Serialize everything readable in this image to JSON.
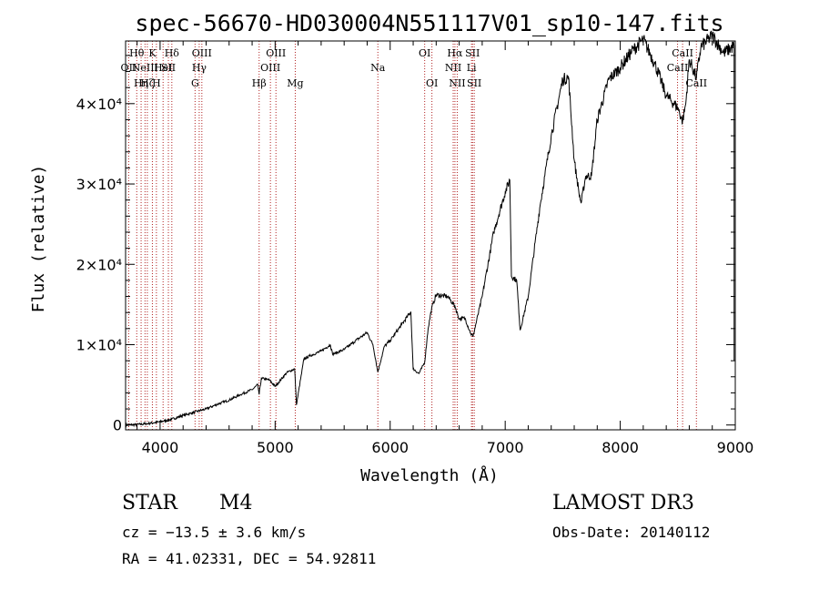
{
  "chart_data": {
    "type": "line",
    "title": "spec-56670-HD030004N551117V01_sp10-147.fits",
    "xlabel": "Wavelength (Å)",
    "ylabel": "Flux (relative)",
    "xlim": [
      3700,
      9000
    ],
    "ylim": [
      -600,
      47800
    ],
    "x_ticks": [
      4000,
      5000,
      6000,
      7000,
      8000,
      9000
    ],
    "y_ticks": [
      {
        "value": 0,
        "label": "0"
      },
      {
        "value": 10000,
        "label": "1×10⁴"
      },
      {
        "value": 20000,
        "label": "2×10⁴"
      },
      {
        "value": 30000,
        "label": "3×10⁴"
      },
      {
        "value": 40000,
        "label": "4×10⁴"
      }
    ],
    "series": [
      {
        "name": "flux",
        "x": [
          3700,
          3800,
          3900,
          4000,
          4100,
          4200,
          4300,
          4400,
          4500,
          4600,
          4700,
          4800,
          4850,
          4861,
          4880,
          4950,
          5000,
          5100,
          5170,
          5185,
          5250,
          5300,
          5400,
          5480,
          5500,
          5600,
          5700,
          5800,
          5850,
          5893,
          5950,
          6000,
          6100,
          6180,
          6200,
          6250,
          6300,
          6330,
          6360,
          6400,
          6500,
          6563,
          6600,
          6650,
          6700,
          6720,
          6800,
          6900,
          7000,
          7040,
          7054,
          7100,
          7130,
          7200,
          7300,
          7400,
          7500,
          7550,
          7600,
          7640,
          7660,
          7700,
          7750,
          7800,
          7900,
          8000,
          8100,
          8200,
          8300,
          8400,
          8500,
          8542,
          8570,
          8600,
          8662,
          8700,
          8800,
          8900,
          8990
        ],
        "y": [
          0,
          50,
          200,
          400,
          700,
          1200,
          1600,
          2000,
          2600,
          3100,
          3800,
          4400,
          5000,
          3800,
          5800,
          5600,
          4800,
          6500,
          7000,
          2500,
          8200,
          8600,
          9200,
          10000,
          8800,
          9400,
          10500,
          11500,
          10000,
          6600,
          9800,
          10500,
          12500,
          14100,
          7000,
          6400,
          7800,
          12000,
          14500,
          16200,
          16000,
          14800,
          13200,
          13300,
          11400,
          11000,
          16000,
          24000,
          29000,
          30500,
          18500,
          18000,
          11800,
          16000,
          27000,
          36000,
          43000,
          43300,
          33000,
          29000,
          27600,
          31000,
          31000,
          38000,
          43000,
          44500,
          46500,
          48000,
          45000,
          41000,
          39500,
          37800,
          40000,
          45500,
          43200,
          47000,
          48500,
          46300,
          47200
        ]
      }
    ],
    "spectral_lines": [
      {
        "wavelength": 3727,
        "label": "OII",
        "row": 2
      },
      {
        "wavelength": 3797,
        "label": "Hθ",
        "row": 1
      },
      {
        "wavelength": 3835,
        "label": "Hη",
        "row": 3
      },
      {
        "wavelength": 3869,
        "label": "NeIII",
        "row": 2
      },
      {
        "wavelength": 3889,
        "label": "Hζ",
        "row": 3
      },
      {
        "wavelength": 3933,
        "label": "K",
        "row": 1
      },
      {
        "wavelength": 3968,
        "label": "H",
        "row": 3
      },
      {
        "wavelength": 4026,
        "label": "HeI",
        "row": 2
      },
      {
        "wavelength": 4072,
        "label": "SII",
        "row": 2
      },
      {
        "wavelength": 4102,
        "label": "Hδ",
        "row": 1
      },
      {
        "wavelength": 4304,
        "label": "G",
        "row": 3
      },
      {
        "wavelength": 4340,
        "label": "Hγ",
        "row": 2
      },
      {
        "wavelength": 4363,
        "label": "OIII",
        "row": 1
      },
      {
        "wavelength": 4861,
        "label": "Hβ",
        "row": 3
      },
      {
        "wavelength": 4959,
        "label": "OIII",
        "row": 2
      },
      {
        "wavelength": 5007,
        "label": "OIII",
        "row": 1
      },
      {
        "wavelength": 5175,
        "label": "Mg",
        "row": 3
      },
      {
        "wavelength": 5893,
        "label": "Na",
        "row": 2
      },
      {
        "wavelength": 6300,
        "label": "OI",
        "row": 1
      },
      {
        "wavelength": 6363,
        "label": "OI",
        "row": 3
      },
      {
        "wavelength": 6548,
        "label": "NII",
        "row": 2
      },
      {
        "wavelength": 6563,
        "label": "Hα",
        "row": 1
      },
      {
        "wavelength": 6583,
        "label": "NII",
        "row": 3
      },
      {
        "wavelength": 6707,
        "label": "Li",
        "row": 2
      },
      {
        "wavelength": 6716,
        "label": "SII",
        "row": 1
      },
      {
        "wavelength": 6731,
        "label": "SII",
        "row": 3
      },
      {
        "wavelength": 8498,
        "label": "CaII",
        "row": 2
      },
      {
        "wavelength": 8542,
        "label": "CaII",
        "row": 1
      },
      {
        "wavelength": 8662,
        "label": "CaII",
        "row": 3
      }
    ]
  },
  "info": {
    "class": "STAR",
    "subclass": "M4",
    "survey": "LAMOST DR3",
    "redshift": "cz = −13.5 ± 3.6 km/s",
    "obs_date": "Obs-Date: 20140112",
    "coords": "RA =  41.02331, DEC =  54.92811"
  },
  "colors": {
    "line_markers": "#b22222",
    "spectrum": "#000000",
    "axes": "#000000"
  }
}
